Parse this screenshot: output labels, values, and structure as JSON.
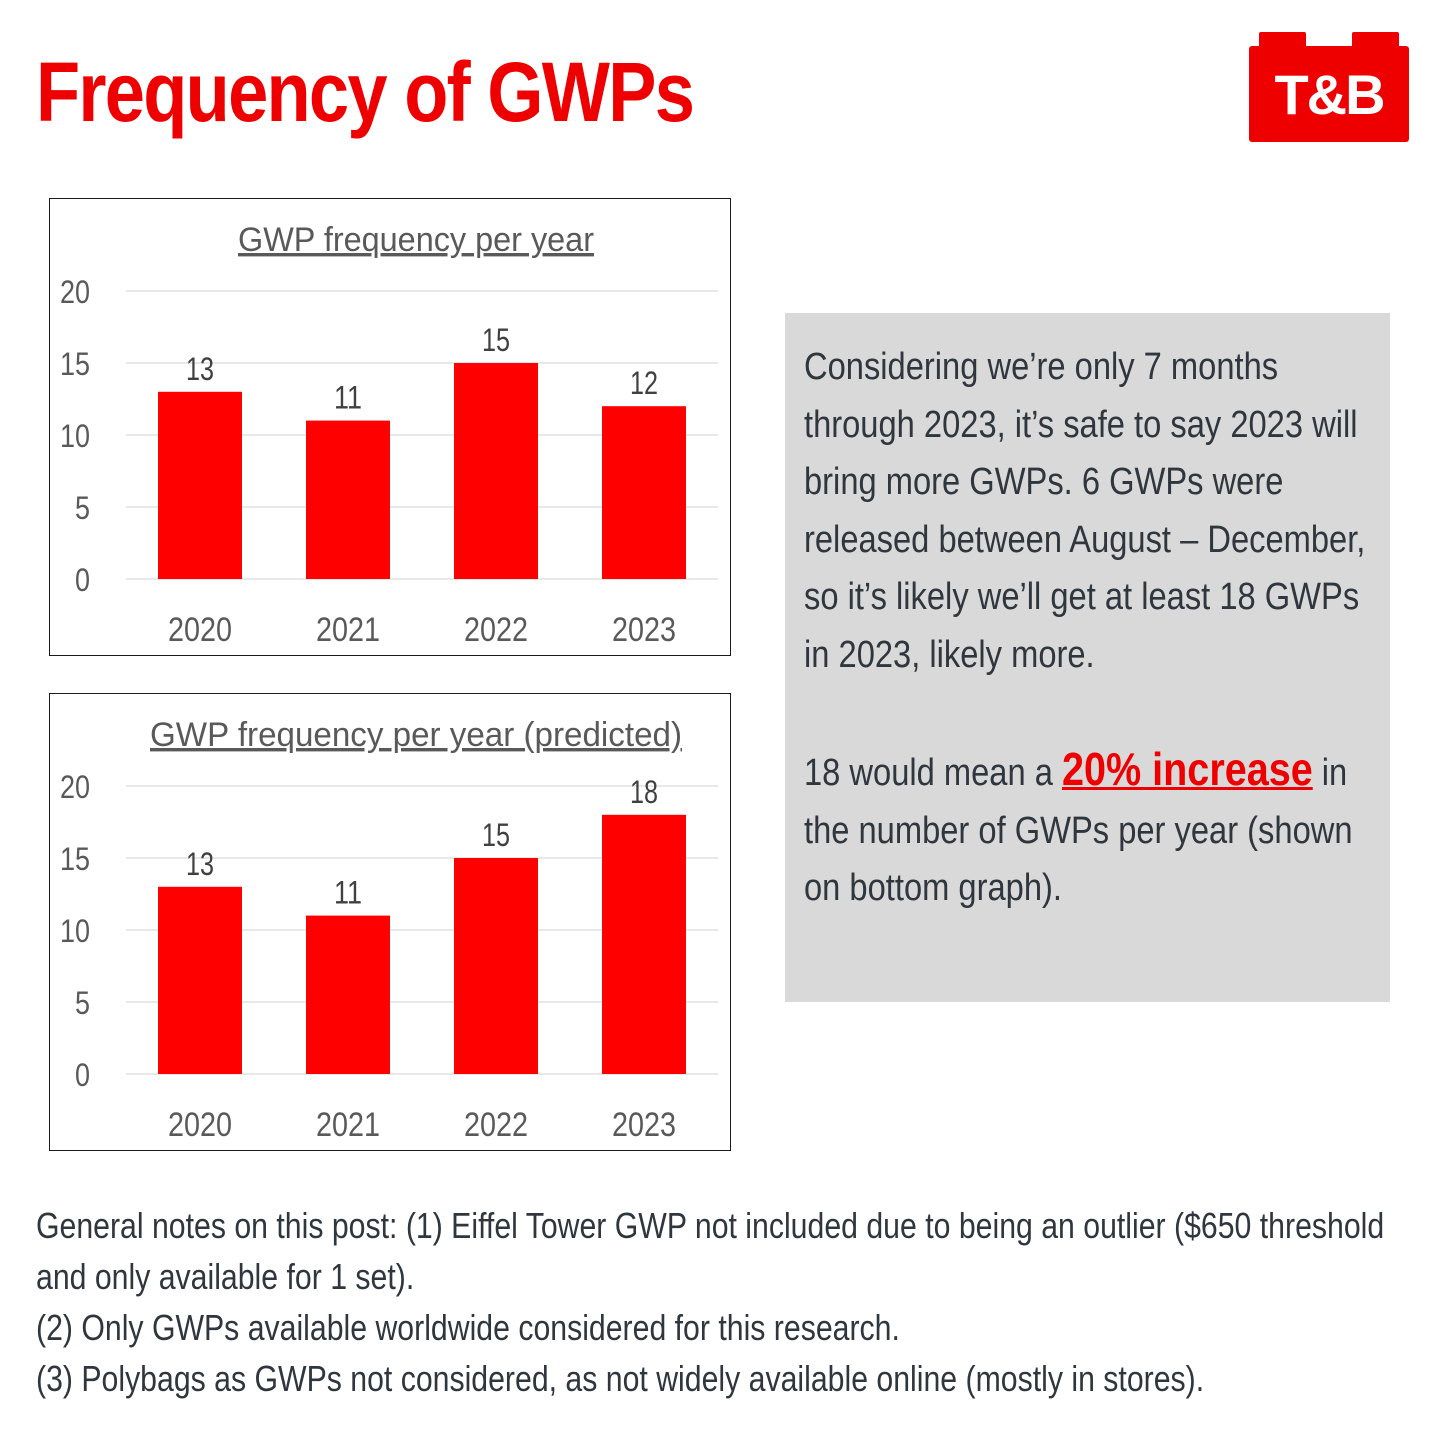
{
  "header": {
    "title": "Frequency of GWPs",
    "logo_text": "T&B",
    "accent_color": "#ee0000"
  },
  "chart_data": [
    {
      "type": "bar",
      "title": "GWP frequency per year",
      "categories": [
        "2020",
        "2021",
        "2022",
        "2023"
      ],
      "values": [
        13,
        11,
        15,
        12
      ],
      "data_labels": [
        "13",
        "11",
        "15",
        "12"
      ],
      "xlabel": "",
      "ylabel": "",
      "ylim": [
        0,
        20
      ],
      "yticks": [
        "0",
        "5",
        "10",
        "15",
        "20"
      ],
      "grid": true,
      "bar_color": "#ff0000"
    },
    {
      "type": "bar",
      "title": "GWP frequency per year (predicted)",
      "categories": [
        "2020",
        "2021",
        "2022",
        "2023"
      ],
      "values": [
        13,
        11,
        15,
        18
      ],
      "data_labels": [
        "13",
        "11",
        "15",
        "18"
      ],
      "xlabel": "",
      "ylabel": "",
      "ylim": [
        0,
        20
      ],
      "yticks": [
        "0",
        "5",
        "10",
        "15",
        "20"
      ],
      "grid": true,
      "bar_color": "#ff0000"
    }
  ],
  "info": {
    "paragraph1": "Considering we’re only 7 months through 2023, it’s safe to say 2023 will bring more GWPs. 6 GWPs were released between August – December, so it’s likely we’ll get at least 18 GWPs in 2023, likely more.",
    "paragraph2_before": "18 would mean a ",
    "paragraph2_highlight": "20% increase",
    "paragraph2_after": " in the number of GWPs per year (shown on bottom graph)."
  },
  "notes": [
    "General notes on this post: (1) Eiffel Tower GWP not included due to being an outlier ($650 threshold and only available for 1 set).",
    "(2) Only GWPs available worldwide considered for this research.",
    "(3) Polybags as GWPs not considered, as not widely available online (mostly in stores)."
  ]
}
